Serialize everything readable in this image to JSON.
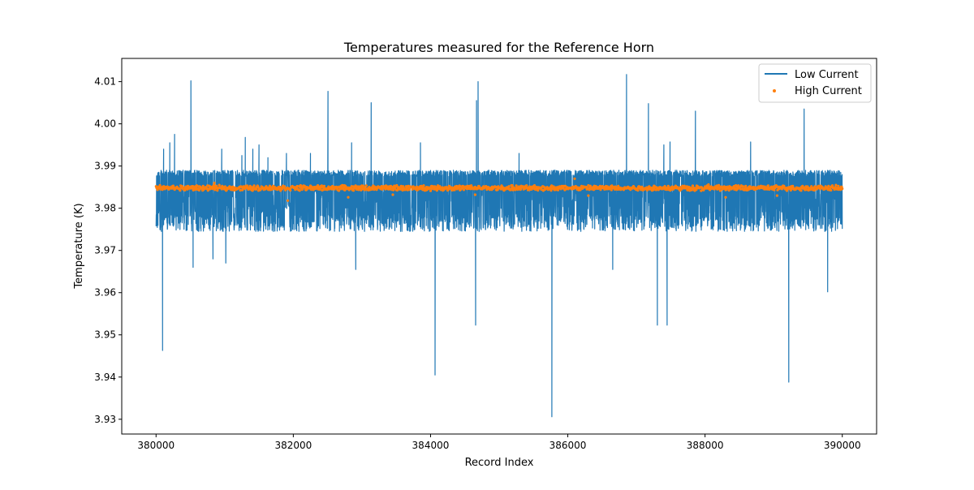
{
  "chart_data": {
    "type": "line",
    "title": "Temperatures measured for the Reference Horn",
    "xlabel": "Record Index",
    "ylabel": "Temperature (K)",
    "xlim": [
      379500,
      390500
    ],
    "ylim": [
      3.9265,
      4.0155
    ],
    "xticks": [
      380000,
      382000,
      384000,
      386000,
      388000,
      390000
    ],
    "xtick_labels": [
      "380000",
      "382000",
      "384000",
      "386000",
      "388000",
      "390000"
    ],
    "yticks": [
      3.93,
      3.94,
      3.95,
      3.96,
      3.97,
      3.98,
      3.99,
      4.0,
      4.01
    ],
    "ytick_labels": [
      "3.93",
      "3.94",
      "3.95",
      "3.96",
      "3.97",
      "3.98",
      "3.99",
      "4.00",
      "4.01"
    ],
    "grid": false,
    "legend_position": "top-right",
    "series": [
      {
        "name": "Low Current",
        "kind": "line",
        "color": "#1f77b4",
        "x_range": [
          380000,
          390000
        ],
        "band_low": 3.9745,
        "band_high": 3.989,
        "band_center": 3.9815,
        "spikes": [
          [
            380095,
            3.9463
          ],
          [
            380110,
            3.994
          ],
          [
            380200,
            3.9955
          ],
          [
            380270,
            3.9975
          ],
          [
            380508,
            4.0102
          ],
          [
            380540,
            3.966
          ],
          [
            380830,
            3.968
          ],
          [
            380957,
            3.994
          ],
          [
            381016,
            3.967
          ],
          [
            381250,
            3.9925
          ],
          [
            381300,
            3.9968
          ],
          [
            381410,
            3.994
          ],
          [
            381500,
            3.995
          ],
          [
            381630,
            3.992
          ],
          [
            381900,
            3.993
          ],
          [
            382250,
            3.993
          ],
          [
            382505,
            4.0077
          ],
          [
            382850,
            3.9955
          ],
          [
            382910,
            3.9655
          ],
          [
            383135,
            4.005
          ],
          [
            383853,
            3.9955
          ],
          [
            384066,
            3.9405
          ],
          [
            384657,
            3.9523
          ],
          [
            384670,
            4.0055
          ],
          [
            384693,
            4.01
          ],
          [
            385290,
            3.993
          ],
          [
            385768,
            3.9306
          ],
          [
            386655,
            3.9655
          ],
          [
            386856,
            4.0117
          ],
          [
            387175,
            4.0048
          ],
          [
            387305,
            3.9523
          ],
          [
            387400,
            3.995
          ],
          [
            387447,
            3.9523
          ],
          [
            387490,
            3.9957
          ],
          [
            387860,
            4.003
          ],
          [
            388664,
            3.9957
          ],
          [
            389220,
            3.9388
          ],
          [
            389444,
            4.0035
          ],
          [
            389787,
            3.9602
          ]
        ]
      },
      {
        "name": "High Current",
        "kind": "scatter",
        "color": "#ff7f0e",
        "x_range": [
          380000,
          390000
        ],
        "center": 3.9848,
        "spread": 0.0007,
        "outliers": [
          [
            381920,
            3.9818
          ],
          [
            382800,
            3.9826
          ],
          [
            383450,
            3.9832
          ],
          [
            384650,
            3.9832
          ],
          [
            386300,
            3.983
          ],
          [
            388300,
            3.9826
          ],
          [
            388050,
            3.9856
          ],
          [
            386100,
            3.987
          ],
          [
            389050,
            3.983
          ],
          [
            380850,
            3.986
          ]
        ]
      }
    ]
  }
}
